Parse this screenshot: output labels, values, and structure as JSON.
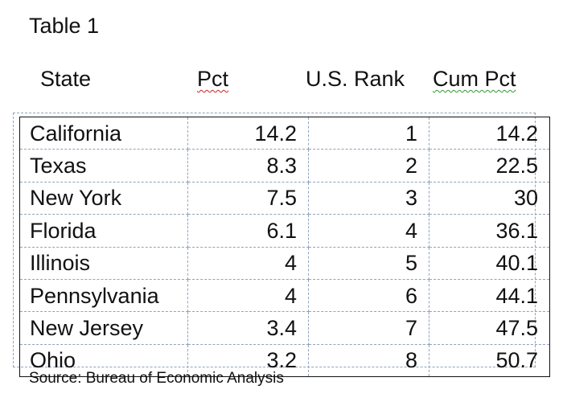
{
  "document": {
    "title": "Table 1",
    "source": "Source: Bureau of Economic Analysis"
  },
  "table": {
    "headers": [
      "State",
      "Pct",
      "U.S. Rank",
      "Cum Pct"
    ],
    "rows": [
      {
        "state": "California",
        "pct": "14.2",
        "rank": "1",
        "cum": "14.2"
      },
      {
        "state": "Texas",
        "pct": "8.3",
        "rank": "2",
        "cum": "22.5"
      },
      {
        "state": "New York",
        "pct": "7.5",
        "rank": "3",
        "cum": "30"
      },
      {
        "state": "Florida",
        "pct": "6.1",
        "rank": "4",
        "cum": "36.1"
      },
      {
        "state": "Illinois",
        "pct": "4",
        "rank": "5",
        "cum": "40.1"
      },
      {
        "state": "Pennsylvania",
        "pct": "4",
        "rank": "6",
        "cum": "44.1"
      },
      {
        "state": "New Jersey",
        "pct": "3.4",
        "rank": "7",
        "cum": "47.5"
      },
      {
        "state": "Ohio",
        "pct": "3.2",
        "rank": "8",
        "cum": "50.7"
      }
    ]
  }
}
